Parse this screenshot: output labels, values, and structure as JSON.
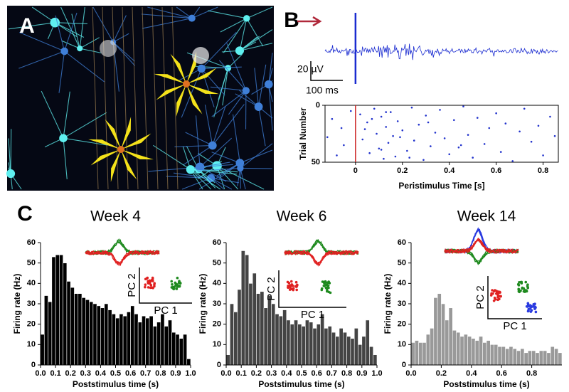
{
  "panel_labels": [
    "A",
    "B",
    "C"
  ],
  "scale_bar": {
    "voltage": "20 µV",
    "time": "100 ms"
  },
  "chart_data": [
    {
      "type": "scatter",
      "xlabel": "Peristimulus Time [s]",
      "ylabel": "Trial Number",
      "color": "#2233cc",
      "x": [
        -0.1,
        -0.05,
        -0.08,
        -0.02,
        -0.12,
        -0.06,
        0.02,
        0.03,
        0.05,
        0.06,
        0.08,
        0.09,
        0.1,
        0.11,
        0.12,
        0.13,
        0.14,
        0.15,
        0.16,
        0.17,
        0.18,
        0.2,
        0.22,
        0.24,
        0.25,
        0.27,
        0.29,
        0.3,
        0.32,
        0.34,
        0.36,
        0.38,
        0.4,
        0.42,
        0.44,
        0.46,
        0.48,
        0.5,
        0.52,
        0.55,
        0.57,
        0.6,
        0.62,
        0.64,
        0.67,
        0.7,
        0.72,
        0.75,
        0.78,
        0.8,
        0.83,
        0.85,
        0.04,
        0.07,
        0.11,
        0.13,
        0.19,
        0.23,
        0.31,
        0.45
      ],
      "y": [
        12,
        35,
        44,
        5,
        28,
        20,
        8,
        30,
        15,
        42,
        3,
        25,
        38,
        10,
        47,
        19,
        33,
        6,
        27,
        45,
        14,
        22,
        40,
        2,
        31,
        17,
        48,
        9,
        36,
        24,
        4,
        29,
        43,
        13,
        37,
        1,
        26,
        46,
        11,
        34,
        20,
        7,
        41,
        16,
        49,
        23,
        3,
        32,
        18,
        44,
        10,
        27,
        21,
        12,
        39,
        6,
        28,
        46,
        15,
        35
      ],
      "xlim": [
        -0.13,
        0.865
      ],
      "ylim": [
        50,
        0
      ],
      "xticks": [
        0,
        0.2,
        0.4,
        0.6,
        0.8
      ],
      "yticks": [
        0,
        50
      ],
      "marker_x": 0,
      "marker_color": "#cc2222"
    },
    {
      "type": "histogram",
      "title": "Week 4",
      "xlabel": "Poststimulus time (s)",
      "ylabel": "Firing rate (Hz)",
      "color": "#000000",
      "bins": [
        0,
        0.025,
        0.05,
        0.075,
        0.1,
        0.125,
        0.15,
        0.175,
        0.2,
        0.225,
        0.25,
        0.275,
        0.3,
        0.325,
        0.35,
        0.375,
        0.4,
        0.425,
        0.45,
        0.475,
        0.5,
        0.525,
        0.55,
        0.575,
        0.6,
        0.625,
        0.65,
        0.675,
        0.7,
        0.725,
        0.75,
        0.775,
        0.8,
        0.825,
        0.85,
        0.875,
        0.9,
        0.925,
        0.95,
        0.975,
        1
      ],
      "values": [
        15,
        34,
        31,
        53,
        54,
        54,
        50,
        41,
        38,
        35,
        35,
        33,
        32,
        31,
        30,
        29,
        28,
        30,
        27,
        25,
        23,
        25,
        24,
        26,
        29,
        25,
        21,
        24,
        23,
        24,
        19,
        21,
        25,
        19,
        22,
        16,
        15,
        13,
        15,
        3
      ],
      "xlim": [
        0,
        1
      ],
      "ylim": [
        0,
        60
      ],
      "xticks": [
        {
          "value": 0,
          "label": "0.0"
        },
        0.1,
        0.2,
        0.3,
        0.4,
        0.5,
        0.6,
        0.7,
        0.8,
        0.9,
        {
          "value": 1,
          "label": "1.0"
        }
      ],
      "yticks": [
        0,
        10,
        20,
        30,
        40,
        50,
        60
      ],
      "inset": {
        "x_label": "PC 1",
        "y_label": "PC 2"
      }
    },
    {
      "type": "histogram",
      "title": "Week 6",
      "xlabel": "Poststimulus time (s)",
      "ylabel": "Firing rate (Hz)",
      "color": "#444444",
      "bins": [
        0,
        0.025,
        0.05,
        0.075,
        0.1,
        0.125,
        0.15,
        0.175,
        0.2,
        0.225,
        0.25,
        0.275,
        0.3,
        0.325,
        0.35,
        0.375,
        0.4,
        0.425,
        0.45,
        0.475,
        0.5,
        0.525,
        0.55,
        0.575,
        0.6,
        0.625,
        0.65,
        0.675,
        0.7,
        0.725,
        0.75,
        0.775,
        0.8,
        0.825,
        0.85,
        0.875,
        0.9,
        0.925,
        0.95,
        0.975,
        1
      ],
      "values": [
        5,
        30,
        26,
        37,
        56,
        54,
        40,
        45,
        35,
        36,
        28,
        34,
        30,
        25,
        24,
        27,
        22,
        20,
        22,
        20,
        19,
        22,
        21,
        18,
        20,
        25,
        18,
        19,
        16,
        14,
        18,
        16,
        14,
        13,
        18,
        10,
        14,
        22,
        9,
        5
      ],
      "xlim": [
        0,
        1
      ],
      "ylim": [
        0,
        60
      ],
      "xticks": [
        {
          "value": 0,
          "label": "0.0"
        },
        0.1,
        0.2,
        0.3,
        0.4,
        0.5,
        0.6,
        0.7,
        0.8,
        0.9,
        {
          "value": 1,
          "label": "1.0"
        }
      ],
      "yticks": [
        0,
        10,
        20,
        30,
        40,
        50,
        60
      ],
      "inset": {
        "x_label": "PC 1",
        "y_label": "PC 2"
      }
    },
    {
      "type": "histogram",
      "title": "Week 14",
      "xlabel": "Poststimulus time (s)",
      "ylabel": "Firing rate (Hz)",
      "color": "#999999",
      "bins": [
        0,
        0.025,
        0.05,
        0.075,
        0.1,
        0.125,
        0.15,
        0.175,
        0.2,
        0.225,
        0.25,
        0.275,
        0.3,
        0.325,
        0.35,
        0.375,
        0.4,
        0.425,
        0.45,
        0.475,
        0.5,
        0.525,
        0.55,
        0.575,
        0.6,
        0.625,
        0.65,
        0.675,
        0.7,
        0.725,
        0.75,
        0.775,
        0.8,
        0.825,
        0.85,
        0.875,
        0.9,
        0.925,
        0.95,
        0.975,
        1
      ],
      "values": [
        11,
        12,
        11,
        11,
        15,
        18,
        33,
        35,
        30,
        22,
        28,
        17,
        16,
        14,
        15,
        14,
        13,
        12,
        14,
        11,
        12,
        10,
        10,
        9,
        9,
        8,
        9,
        8,
        7,
        8,
        6,
        7,
        7,
        6,
        7,
        7,
        6,
        9,
        8,
        6
      ],
      "xlim": [
        0,
        1
      ],
      "ylim": [
        0,
        60
      ],
      "xticks": [
        {
          "value": 0,
          "label": "0.0"
        },
        0.2,
        0.4,
        0.6,
        0.8
      ],
      "yticks": [
        0,
        10,
        20,
        30,
        40,
        50,
        60
      ],
      "inset": {
        "x_label": "PC 1",
        "y_label": "PC 2"
      }
    }
  ]
}
